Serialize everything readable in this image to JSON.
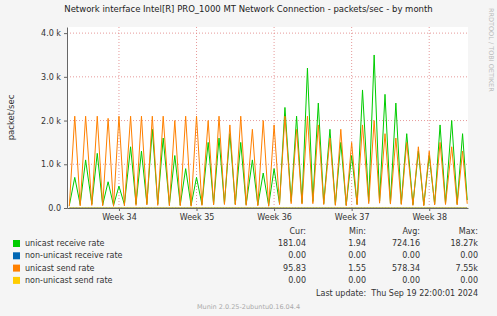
{
  "chart_data": {
    "type": "line",
    "title": "Network interface Intel[R] PRO_1000 MT Network Connection - packets/sec - by month",
    "y_label": "packet/sec",
    "grid": true,
    "xlim": [
      33.33,
      38.5
    ],
    "xticks": [
      {
        "value": 34,
        "label": "Week 34"
      },
      {
        "value": 35,
        "label": "Week 35"
      },
      {
        "value": 36,
        "label": "Week 36"
      },
      {
        "value": 37,
        "label": "Week 37"
      },
      {
        "value": 38,
        "label": "Week 38"
      }
    ],
    "ylim": [
      0,
      4140
    ],
    "yticks": [
      {
        "value": 0,
        "label": "0.0"
      },
      {
        "value": 1000,
        "label": "1.0 k"
      },
      {
        "value": 2000,
        "label": "2.0 k"
      },
      {
        "value": 3000,
        "label": "3.0 k"
      },
      {
        "value": 4000,
        "label": "4.0 k"
      }
    ],
    "stat_headers": [
      "Cur:",
      "Min:",
      "Avg:",
      "Max:"
    ],
    "annotations": [
      "RRDTOOL / TOBI OETIKER",
      "Last update:  Thu Sep 19 22:00:01 2024",
      "Munin 2.0.25-2ubuntu0.16.04.4"
    ],
    "x": [
      33.36,
      33.43,
      33.5,
      33.57,
      33.65,
      33.72,
      33.79,
      33.86,
      33.93,
      34.0,
      34.07,
      34.15,
      34.22,
      34.29,
      34.36,
      34.43,
      34.5,
      34.57,
      34.65,
      34.72,
      34.79,
      34.86,
      34.93,
      35.0,
      35.07,
      35.15,
      35.22,
      35.29,
      35.36,
      35.43,
      35.5,
      35.57,
      35.64,
      35.72,
      35.79,
      35.86,
      35.93,
      36.0,
      36.07,
      36.14,
      36.22,
      36.29,
      36.36,
      36.43,
      36.5,
      36.57,
      36.64,
      36.72,
      36.79,
      36.86,
      36.93,
      37.0,
      37.07,
      37.14,
      37.22,
      37.29,
      37.36,
      37.43,
      37.5,
      37.57,
      37.64,
      37.71,
      37.79,
      37.86,
      37.93,
      38.0,
      38.07,
      38.14,
      38.21,
      38.29,
      38.36,
      38.43,
      38.49
    ],
    "series": [
      {
        "name": "unicast receive rate",
        "color": "#00cc00",
        "stats": [
          "181.04",
          "1.94",
          "724.16",
          "18.27k"
        ],
        "values": [
          60,
          700,
          80,
          1100,
          90,
          1250,
          70,
          600,
          60,
          500,
          80,
          1400,
          90,
          1300,
          100,
          1800,
          90,
          1600,
          80,
          1200,
          70,
          900,
          60,
          700,
          80,
          1500,
          90,
          1600,
          100,
          1700,
          90,
          1500,
          80,
          1100,
          70,
          800,
          60,
          900,
          100,
          2300,
          150,
          2100,
          120,
          3200,
          150,
          2400,
          100,
          1800,
          80,
          1500,
          70,
          1200,
          90,
          2700,
          150,
          3500,
          160,
          2600,
          120,
          2400,
          100,
          1700,
          80,
          1300,
          70,
          1200,
          90,
          1900,
          110,
          2000,
          100,
          1700,
          181
        ]
      },
      {
        "name": "non-unicast receive rate",
        "color": "#0066b3",
        "stats": [
          "0.00",
          "0.00",
          "0.00",
          "0.00"
        ],
        "values": [
          0,
          0,
          0,
          0,
          0,
          0,
          0,
          0,
          0,
          0,
          0,
          0,
          0,
          0,
          0,
          0,
          0,
          0,
          0,
          0,
          0,
          0,
          0,
          0,
          0,
          0,
          0,
          0,
          0,
          0,
          0,
          0,
          0,
          0,
          0,
          0,
          0,
          0,
          0,
          0,
          0,
          0,
          0,
          0,
          0,
          0,
          0,
          0,
          0,
          0,
          0,
          0,
          0,
          0,
          0,
          0,
          0,
          0,
          0,
          0,
          0,
          0,
          0,
          0,
          0,
          0,
          0,
          0,
          0,
          0,
          0,
          0,
          0
        ]
      },
      {
        "name": "unicast send rate",
        "color": "#ff8000",
        "stats": [
          "95.83",
          "1.55",
          "578.34",
          "7.55k"
        ],
        "values": [
          40,
          2100,
          50,
          2100,
          60,
          2100,
          50,
          2050,
          40,
          2100,
          50,
          2100,
          60,
          2100,
          70,
          2100,
          60,
          2100,
          50,
          2000,
          50,
          2100,
          40,
          2100,
          60,
          2000,
          70,
          2100,
          80,
          1900,
          70,
          2100,
          60,
          1800,
          50,
          2000,
          40,
          1900,
          80,
          2100,
          100,
          1800,
          90,
          2100,
          100,
          1900,
          80,
          1600,
          60,
          1800,
          50,
          1500,
          70,
          1900,
          100,
          2000,
          110,
          1700,
          90,
          1600,
          80,
          1500,
          60,
          1400,
          50,
          1300,
          70,
          1500,
          80,
          1400,
          70,
          1300,
          96
        ]
      },
      {
        "name": "non-unicast send rate",
        "color": "#ffcc00",
        "stats": [
          "0.00",
          "0.00",
          "0.00",
          "0.00"
        ],
        "values": [
          0,
          0,
          0,
          0,
          0,
          0,
          0,
          0,
          0,
          0,
          0,
          0,
          0,
          0,
          0,
          0,
          0,
          0,
          0,
          0,
          0,
          0,
          0,
          0,
          0,
          0,
          0,
          0,
          0,
          0,
          0,
          0,
          0,
          0,
          0,
          0,
          0,
          0,
          0,
          0,
          0,
          0,
          0,
          0,
          0,
          0,
          0,
          0,
          0,
          0,
          0,
          0,
          0,
          0,
          0,
          0,
          0,
          0,
          0,
          0,
          0,
          0,
          0,
          0,
          0,
          0,
          0,
          0,
          0,
          0,
          0,
          0,
          0
        ]
      }
    ]
  }
}
